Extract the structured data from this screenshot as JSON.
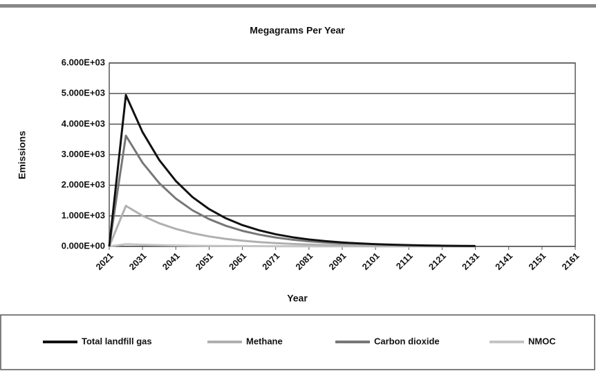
{
  "chart_data": {
    "type": "line",
    "title": "Megagrams Per Year",
    "xlabel": "Year",
    "ylabel": "Emissions",
    "x": [
      2021,
      2026,
      2031,
      2036,
      2041,
      2046,
      2051,
      2056,
      2061,
      2066,
      2071,
      2076,
      2081,
      2086,
      2091,
      2096,
      2101,
      2106,
      2111,
      2116,
      2121,
      2126,
      2131
    ],
    "series": [
      {
        "name": "Total landfill gas",
        "color": "#111111",
        "values": [
          0,
          4950,
          3740,
          2830,
          2140,
          1615,
          1220,
          922,
          697,
          527,
          398,
          301,
          228,
          172,
          130,
          98,
          74,
          56,
          42,
          32,
          24,
          18,
          14
        ]
      },
      {
        "name": "Methane",
        "color": "#b0b0b0",
        "values": [
          0,
          1327,
          1002,
          758,
          574,
          433,
          327,
          247,
          187,
          141,
          107,
          81,
          61,
          46,
          35,
          26,
          20,
          15,
          11,
          9,
          6,
          5,
          4
        ]
      },
      {
        "name": "Carbon dioxide",
        "color": "#777777",
        "values": [
          0,
          3623,
          2738,
          2072,
          1566,
          1182,
          893,
          675,
          510,
          386,
          291,
          220,
          167,
          126,
          95,
          72,
          54,
          41,
          31,
          23,
          18,
          13,
          10
        ]
      },
      {
        "name": "NMOC",
        "color": "#c4c4c4",
        "values": [
          0,
          74,
          56,
          42,
          32,
          24,
          18,
          14,
          10,
          8,
          6,
          5,
          3,
          3,
          2,
          1.5,
          1.1,
          0.8,
          0.6,
          0.5,
          0.4,
          0.3,
          0.2
        ]
      }
    ],
    "xlim": [
      2021,
      2161
    ],
    "xticks": [
      2021,
      2031,
      2041,
      2051,
      2061,
      2071,
      2081,
      2091,
      2101,
      2111,
      2121,
      2131,
      2141,
      2151,
      2161
    ],
    "ylim": [
      0,
      6000
    ],
    "yticks": [
      {
        "value": 0,
        "label": "0.000E+00"
      },
      {
        "value": 1000,
        "label": "1.000E+03"
      },
      {
        "value": 2000,
        "label": "2.000E+03"
      },
      {
        "value": 3000,
        "label": "3.000E+03"
      },
      {
        "value": 4000,
        "label": "4.000E+03"
      },
      {
        "value": 5000,
        "label": "5.000E+03"
      },
      {
        "value": 6000,
        "label": "6.000E+03"
      }
    ],
    "grid": true,
    "legend": "bottom"
  }
}
